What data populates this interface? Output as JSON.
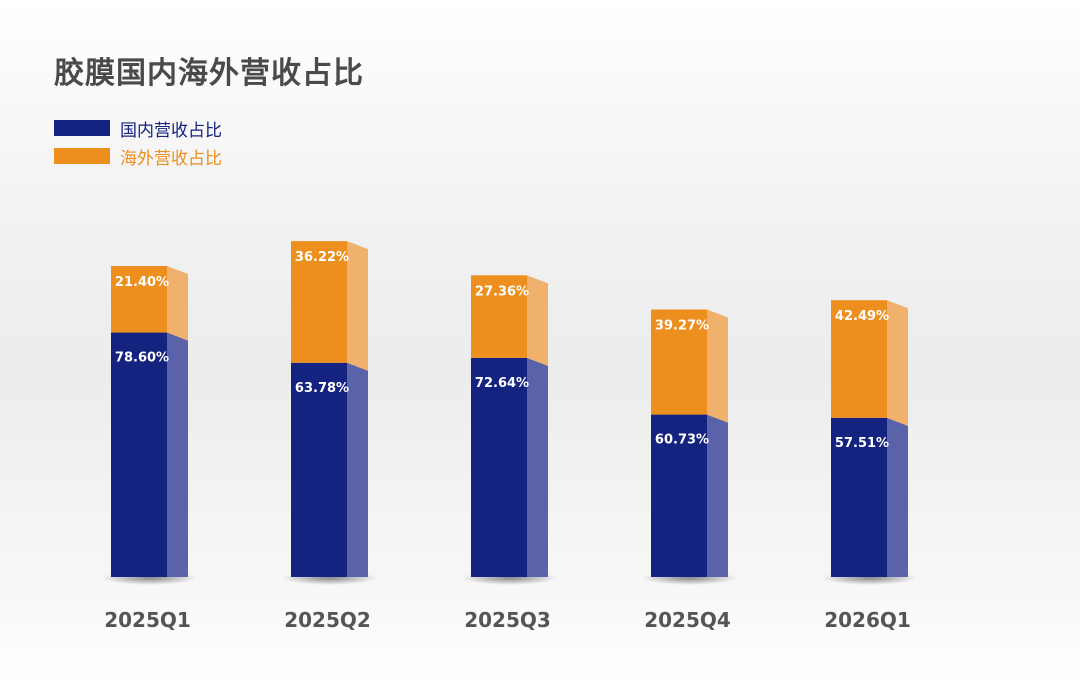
{
  "colors": {
    "domestic": "#14237f",
    "domestic_side": "#5a62aa",
    "overseas": "#ec8f1e",
    "overseas_side": "#efb16c",
    "title": "#4a4a4a",
    "category_label": "#555555"
  },
  "chart_data": {
    "type": "bar",
    "stacked": true,
    "title": "胶膜国内海外营收占比",
    "categories": [
      "2025Q1",
      "2025Q2",
      "2025Q3",
      "2025Q4",
      "2026Q1"
    ],
    "series": [
      {
        "name": "国内营收占比",
        "values": [
          78.6,
          63.78,
          72.64,
          60.73,
          57.51
        ],
        "labels": [
          "78.60%",
          "63.78%",
          "72.64%",
          "60.73%",
          "57.51%"
        ]
      },
      {
        "name": "海外营收占比",
        "values": [
          21.4,
          36.22,
          27.36,
          39.27,
          42.49
        ],
        "labels": [
          "21.40%",
          "36.22%",
          "27.36%",
          "39.27%",
          "42.49%"
        ]
      }
    ],
    "bar_heights_index": [
      100,
      108,
      97,
      86,
      89
    ],
    "legend_position": "top-left",
    "grid": false
  }
}
